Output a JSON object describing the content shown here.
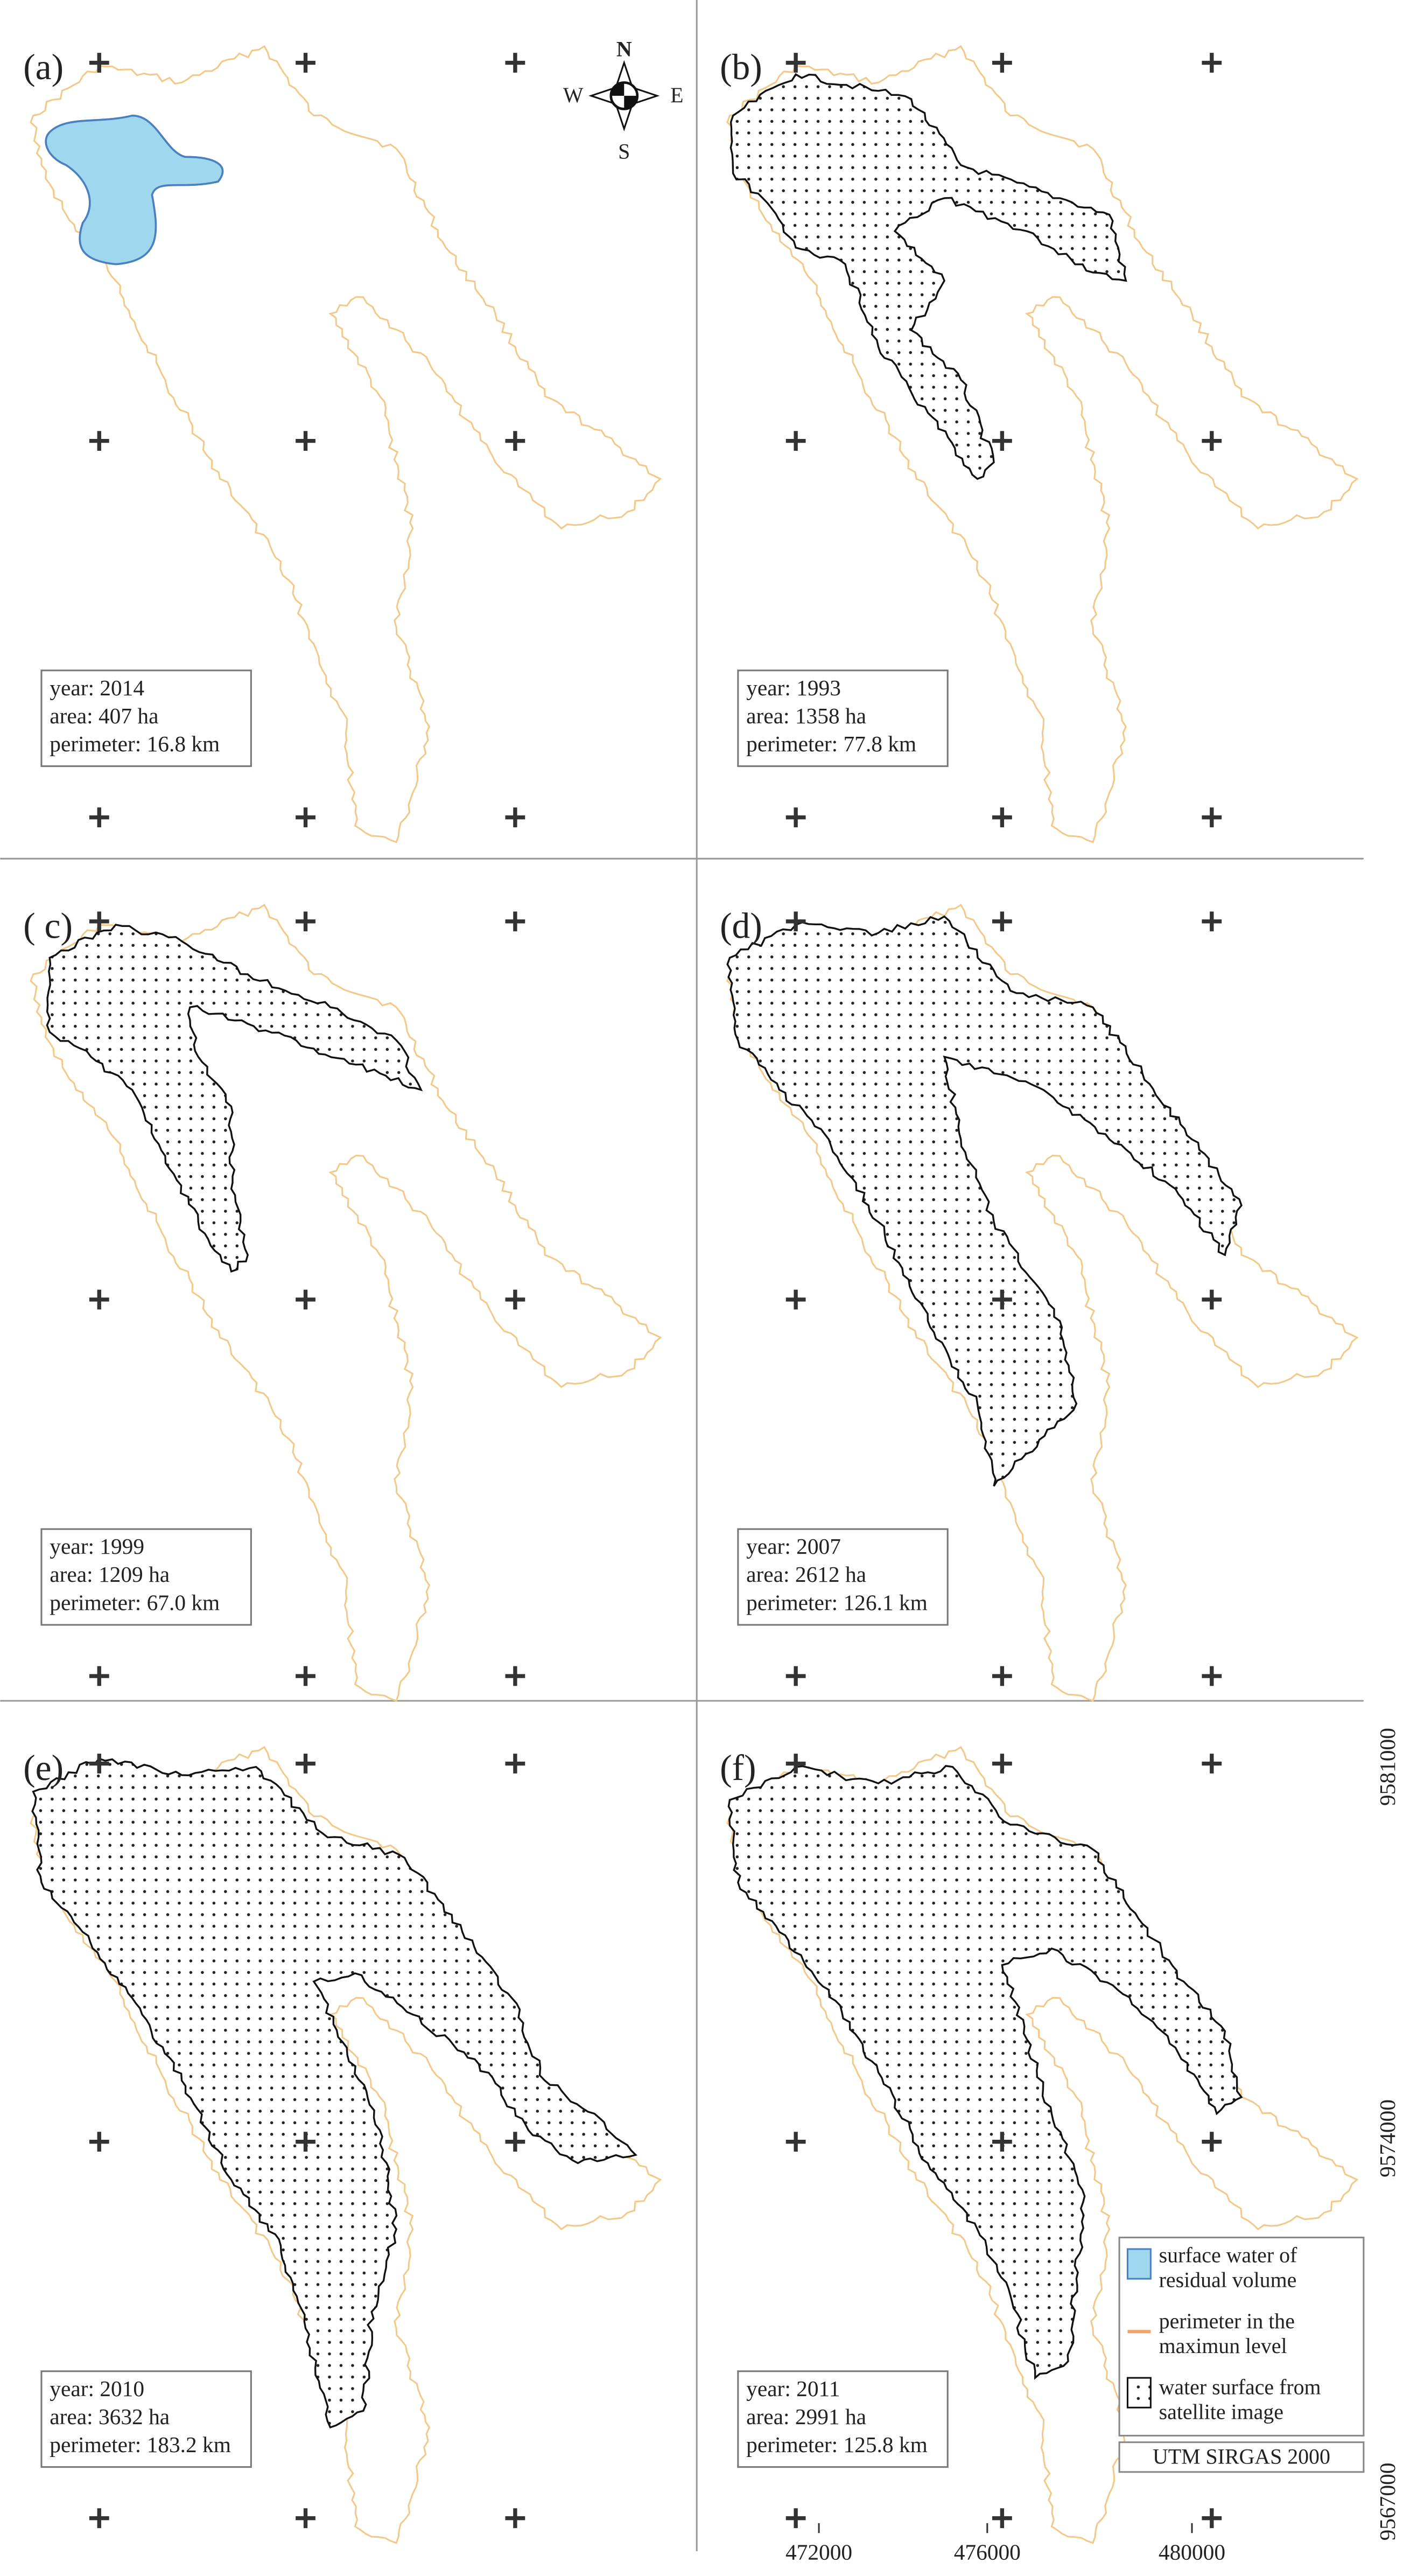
{
  "panels": [
    {
      "label": "(a)",
      "year": "year: 2014",
      "area": "area: 407 ha",
      "perimeter": "perimeter: 16.8 km"
    },
    {
      "label": "(b)",
      "year": "year: 1993",
      "area": "area: 1358 ha",
      "perimeter": "perimeter: 77.8 km"
    },
    {
      "label": "( c)",
      "year": "year: 1999",
      "area": "area: 1209 ha",
      "perimeter": "perimeter: 67.0 km"
    },
    {
      "label": "(d)",
      "year": "year: 2007",
      "area": "area: 2612 ha",
      "perimeter": "perimeter: 126.1 km"
    },
    {
      "label": "(e)",
      "year": "year: 2010",
      "area": "area: 3632 ha",
      "perimeter": "perimeter: 183.2 km"
    },
    {
      "label": "(f)",
      "year": "year: 2011",
      "area": "area: 2991 ha",
      "perimeter": "perimeter: 125.8 km"
    }
  ],
  "compass": {
    "n": "N",
    "s": "S",
    "e": "E",
    "w": "W"
  },
  "legend": {
    "items": [
      [
        "surface water of",
        "residual volume"
      ],
      [
        "perimeter in the",
        "maximun level"
      ],
      [
        "water surface from",
        "satellite image"
      ]
    ],
    "crs": "UTM SIRGAS 2000"
  },
  "axes": {
    "x": [
      "472000",
      "476000",
      "480000"
    ],
    "y": [
      "9581000",
      "9574000",
      "9567000"
    ]
  }
}
